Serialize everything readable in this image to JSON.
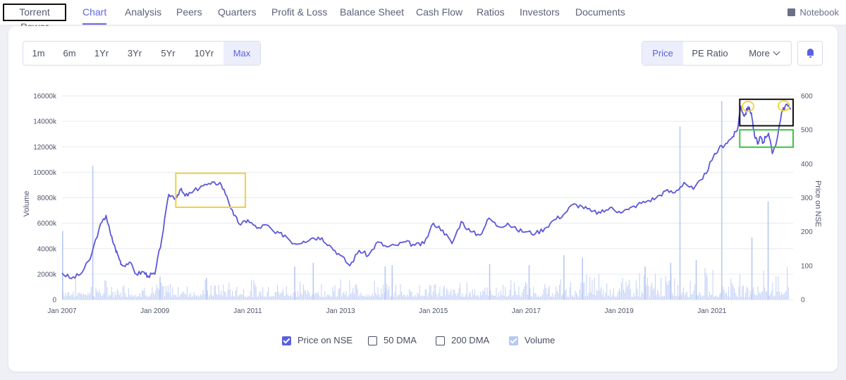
{
  "company": "Torrent Power",
  "tabs": [
    {
      "label": "Chart",
      "active": true
    },
    {
      "label": "Analysis"
    },
    {
      "label": "Peers"
    },
    {
      "label": "Quarters"
    },
    {
      "label": "Profit & Loss"
    },
    {
      "label": "Balance Sheet"
    },
    {
      "label": "Cash Flow"
    },
    {
      "label": "Ratios"
    },
    {
      "label": "Investors"
    },
    {
      "label": "Documents"
    }
  ],
  "notebook": "Notebook",
  "ranges": [
    "1m",
    "6m",
    "1Yr",
    "3Yr",
    "5Yr",
    "10Yr",
    "Max"
  ],
  "active_range": "Max",
  "metrics": {
    "price": "Price",
    "pe": "PE Ratio",
    "more": "More"
  },
  "legend": {
    "price": "Price on NSE",
    "dma50": "50 DMA",
    "dma200": "200 DMA",
    "volume": "Volume"
  },
  "colors": {
    "accent": "#5b5fe0",
    "line": "#5b57d9",
    "volume": "#b9c8f4",
    "highlight_yellow": "#f2d23a",
    "highlight_green": "#3cc43c",
    "highlight_black": "#111111"
  },
  "chart_data": {
    "type": "line",
    "xlabel": "",
    "ylabel": "Volume",
    "y2label": "Price on NSE",
    "x_ticks": [
      "Jan 2007",
      "Jan 2009",
      "Jan 2011",
      "Jan 2013",
      "Jan 2015",
      "Jan 2017",
      "Jan 2019",
      "Jan 2021"
    ],
    "y_ticks": [
      "0",
      "2000k",
      "4000k",
      "6000k",
      "8000k",
      "10000k",
      "12000k",
      "14000k",
      "16000k"
    ],
    "y2_ticks": [
      "0",
      "100",
      "200",
      "300",
      "400",
      "500",
      "600"
    ],
    "ylim": [
      0,
      16000000
    ],
    "y2lim": [
      0,
      600
    ],
    "xlim": [
      2007.0,
      2022.75
    ],
    "series": [
      {
        "name": "Price on NSE",
        "x": [
          2007.0,
          2007.2,
          2007.4,
          2007.6,
          2007.8,
          2007.95,
          2008.05,
          2008.15,
          2008.22,
          2008.3,
          2008.45,
          2008.6,
          2008.75,
          2008.85,
          2009.0,
          2009.15,
          2009.3,
          2009.45,
          2009.55,
          2009.65,
          2009.8,
          2010.0,
          2010.2,
          2010.4,
          2010.55,
          2010.7,
          2010.85,
          2011.0,
          2011.2,
          2011.4,
          2011.6,
          2011.8,
          2012.0,
          2012.2,
          2012.4,
          2012.6,
          2012.8,
          2013.0,
          2013.2,
          2013.4,
          2013.6,
          2013.8,
          2014.0,
          2014.2,
          2014.4,
          2014.6,
          2014.8,
          2015.0,
          2015.2,
          2015.4,
          2015.6,
          2015.8,
          2016.0,
          2016.2,
          2016.4,
          2016.6,
          2016.8,
          2017.0,
          2017.2,
          2017.4,
          2017.6,
          2017.8,
          2018.0,
          2018.2,
          2018.4,
          2018.6,
          2018.8,
          2019.0,
          2019.2,
          2019.4,
          2019.6,
          2019.8,
          2020.0,
          2020.2,
          2020.4,
          2020.6,
          2020.8,
          2021.0,
          2021.15,
          2021.3,
          2021.45,
          2021.55,
          2021.62,
          2021.7,
          2021.78,
          2021.85,
          2021.92,
          2022.0,
          2022.05,
          2022.1,
          2022.15,
          2022.22,
          2022.3,
          2022.4,
          2022.5,
          2022.6,
          2022.7
        ],
        "values": [
          78,
          62,
          75,
          118,
          210,
          248,
          190,
          150,
          125,
          100,
          110,
          75,
          82,
          70,
          75,
          180,
          310,
          300,
          325,
          305,
          315,
          335,
          340,
          345,
          305,
          248,
          220,
          235,
          210,
          220,
          195,
          190,
          165,
          172,
          182,
          182,
          155,
          130,
          100,
          145,
          130,
          170,
          155,
          160,
          170,
          160,
          165,
          225,
          205,
          165,
          230,
          200,
          190,
          240,
          215,
          225,
          205,
          200,
          195,
          210,
          235,
          250,
          280,
          275,
          260,
          255,
          270,
          260,
          265,
          280,
          290,
          300,
          320,
          315,
          345,
          325,
          355,
          410,
          445,
          460,
          480,
          500,
          570,
          540,
          568,
          550,
          480,
          460,
          480,
          460,
          480,
          490,
          430,
          470,
          550,
          575,
          560
        ]
      },
      {
        "name": "Volume",
        "spikes_x": [
          2007.0,
          2007.65,
          2009.1,
          2010.1,
          2012.0,
          2012.4,
          2013.95,
          2014.1,
          2016.2,
          2017.05,
          2017.8,
          2018.2,
          2019.55,
          2020.1,
          2020.3,
          2020.65,
          2021.2,
          2021.85,
          2022.2
        ],
        "spikes": [
          5400000,
          10500000,
          1800000,
          1700000,
          2600000,
          2900000,
          2600000,
          2700000,
          2800000,
          2700000,
          3500000,
          3300000,
          2600000,
          2900000,
          13600000,
          3100000,
          15600000,
          4900000,
          7700000
        ],
        "baseline_note_range": [
          200000,
          1800000
        ]
      }
    ]
  }
}
